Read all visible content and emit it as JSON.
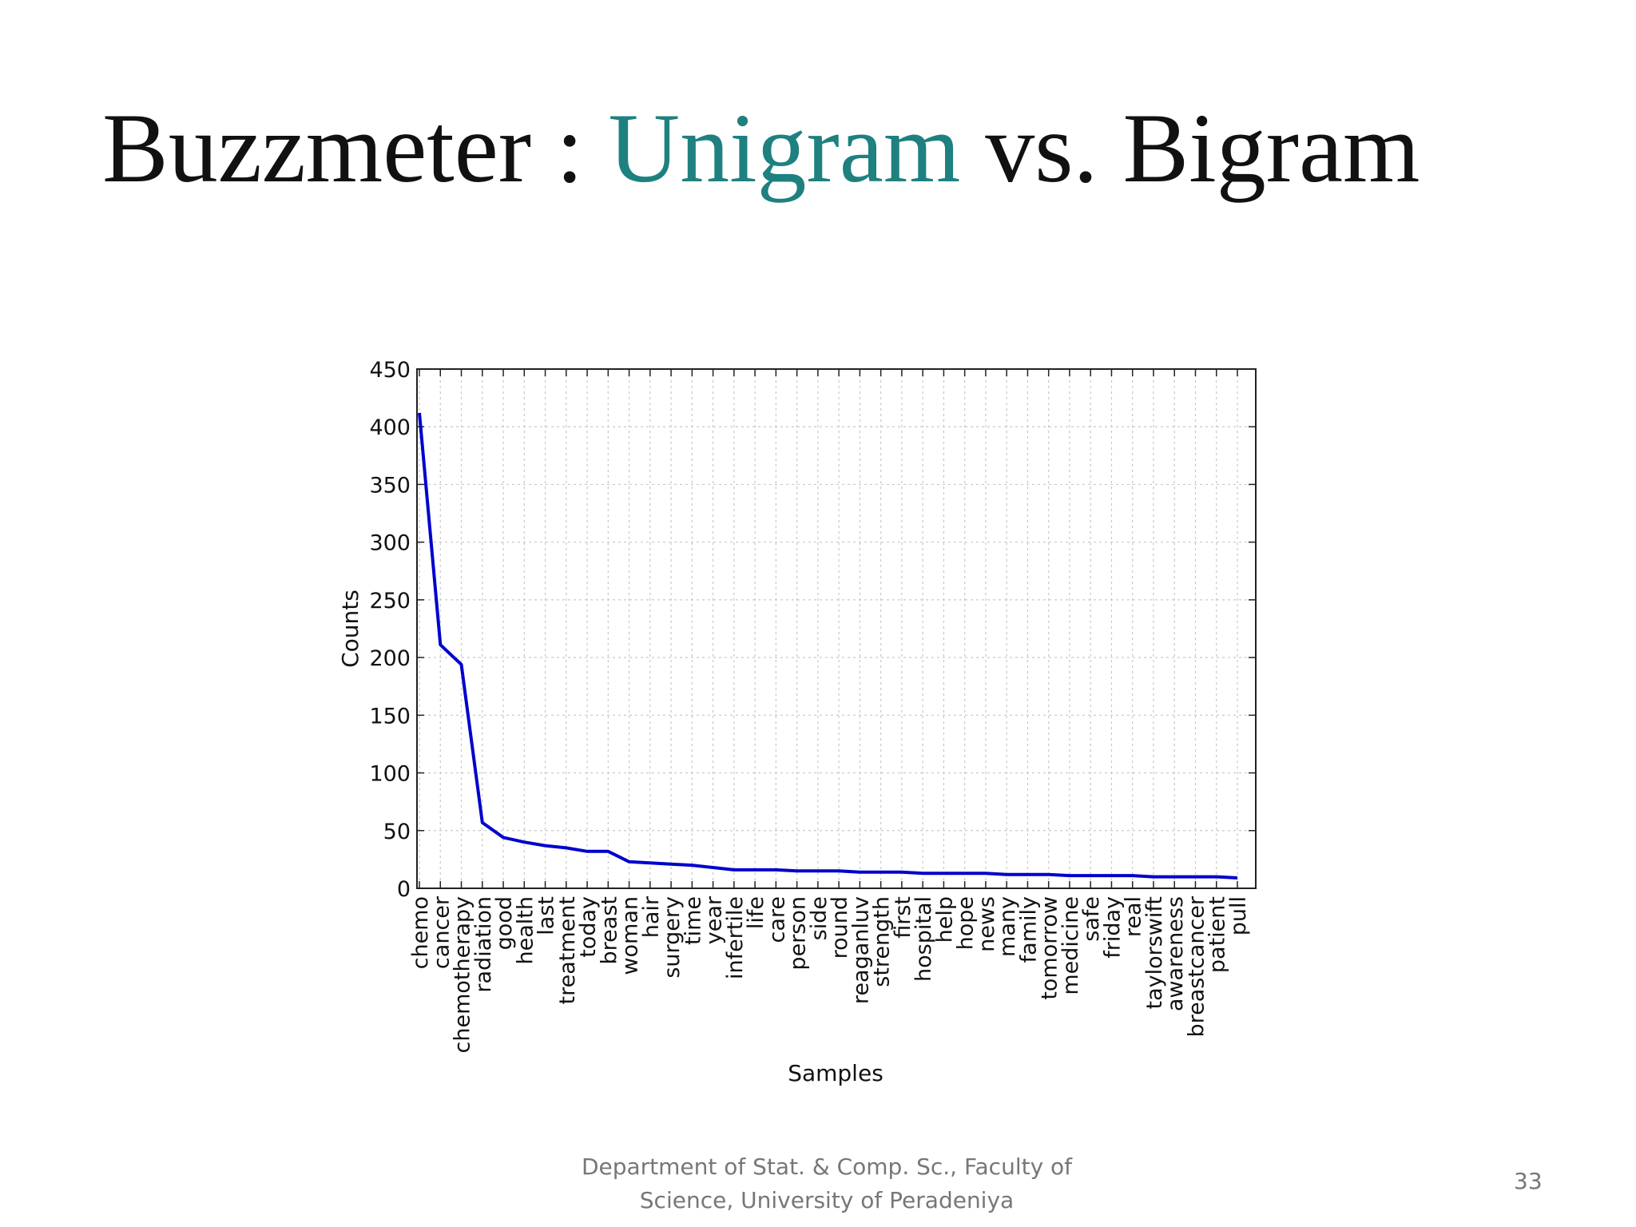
{
  "slide": {
    "title_part1": "Buzzmeter : ",
    "title_accent": "Unigram",
    "title_part2": " vs. Bigram",
    "accent_color": "#1f8080",
    "footer_line1": "Department of Stat. & Comp. Sc., Faculty of",
    "footer_line2": "Science, University of Peradeniya",
    "page_number": "33"
  },
  "chart_data": {
    "type": "line",
    "title": "",
    "xlabel": "Samples",
    "ylabel": "Counts",
    "ylim": [
      0,
      450
    ],
    "yticks": [
      0,
      50,
      100,
      150,
      200,
      250,
      300,
      350,
      400,
      450
    ],
    "grid": true,
    "line_color": "#0000cc",
    "categories": [
      "chemo",
      "cancer",
      "chemotherapy",
      "radiation",
      "good",
      "health",
      "last",
      "treatment",
      "today",
      "breast",
      "woman",
      "hair",
      "surgery",
      "time",
      "year",
      "infertile",
      "life",
      "care",
      "person",
      "side",
      "round",
      "reaganluv",
      "strength",
      "first",
      "hospital",
      "help",
      "hope",
      "news",
      "many",
      "family",
      "tomorrow",
      "medicine",
      "safe",
      "friday",
      "real",
      "taylorswift",
      "awareness",
      "breastcancer",
      "patient",
      "pull"
    ],
    "values": [
      412,
      211,
      194,
      57,
      44,
      40,
      37,
      35,
      32,
      32,
      23,
      22,
      21,
      20,
      18,
      16,
      16,
      16,
      15,
      15,
      15,
      14,
      14,
      14,
      13,
      13,
      13,
      13,
      12,
      12,
      12,
      11,
      11,
      11,
      11,
      10,
      10,
      10,
      10,
      9
    ]
  }
}
